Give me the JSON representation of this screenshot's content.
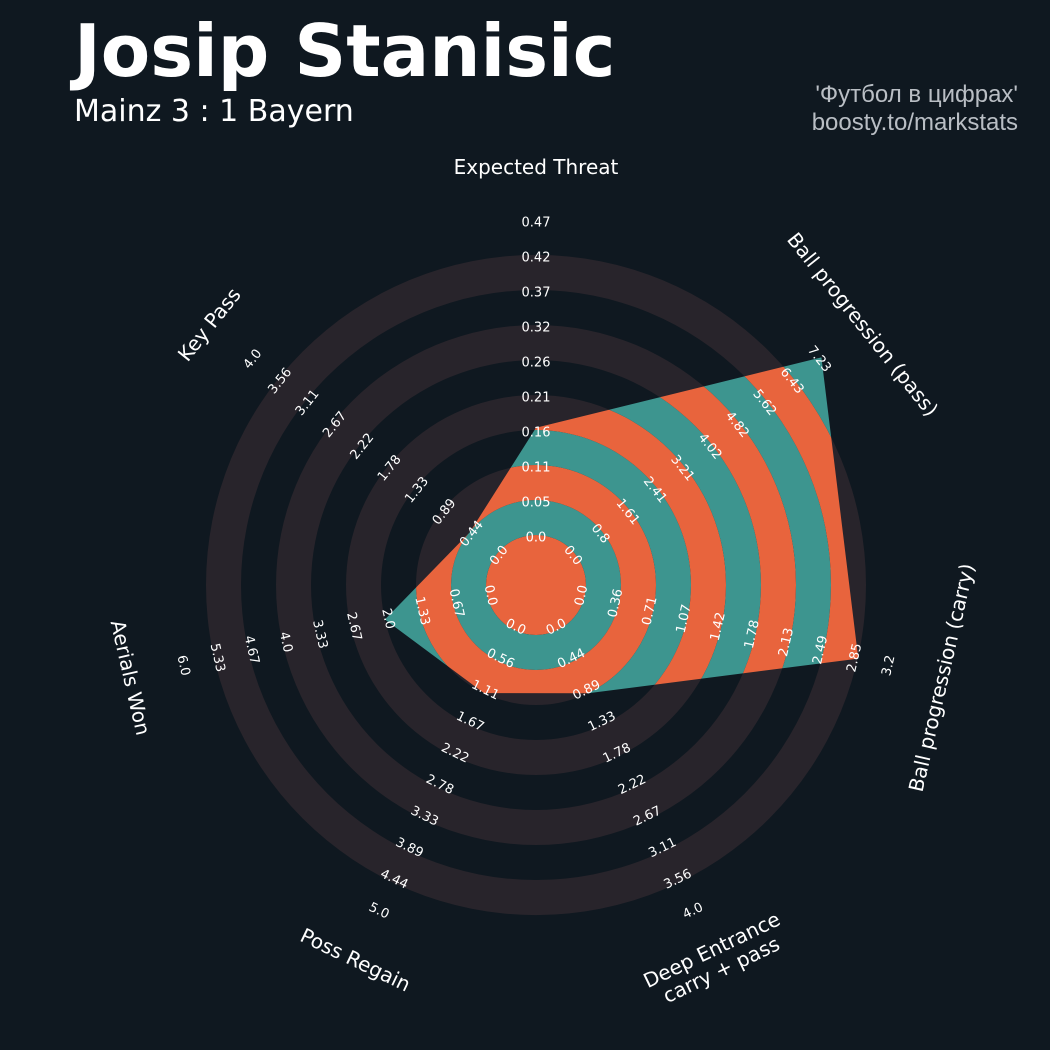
{
  "header": {
    "title": "Josip Stanisic",
    "subtitle": "Mainz 3 : 1 Bayern",
    "credit_line1": "'Футбол в цифрах'",
    "credit_line2": "boosty.to/markstats"
  },
  "chart_data": {
    "type": "radar",
    "grid": true,
    "colors": {
      "background": "#0f1820",
      "ring_band": "#28242b",
      "fill_a": "#e8643d",
      "fill_b": "#3d958f",
      "text": "#ffffff"
    },
    "axes": [
      {
        "label": "Expected Threat",
        "value": 0.16,
        "min": 0.0,
        "max": 0.47,
        "ticks": [
          "0.0",
          "0.05",
          "0.11",
          "0.16",
          "0.21",
          "0.26",
          "0.32",
          "0.37",
          "0.42",
          "0.47"
        ]
      },
      {
        "label": "Ball progression (pass)",
        "value": 7.23,
        "min": 0.0,
        "max": 7.23,
        "ticks": [
          "0.0",
          "0.8",
          "1.61",
          "2.41",
          "3.21",
          "4.02",
          "4.82",
          "5.62",
          "6.43",
          "7.23"
        ]
      },
      {
        "label": "Ball progression (carry)",
        "value": 2.85,
        "min": 0.0,
        "max": 3.2,
        "ticks": [
          "0.0",
          "0.36",
          "0.71",
          "1.07",
          "1.42",
          "1.78",
          "2.13",
          "2.49",
          "2.85",
          "3.2"
        ]
      },
      {
        "label": "Deep Entrance\ncarry + pass",
        "value": 0.89,
        "min": 0.0,
        "max": 4.0,
        "ticks": [
          "0.0",
          "0.44",
          "0.89",
          "1.33",
          "1.78",
          "2.22",
          "2.67",
          "3.11",
          "3.56",
          "4.0"
        ]
      },
      {
        "label": "Poss Regain",
        "value": 1.11,
        "min": 0.0,
        "max": 5.0,
        "ticks": [
          "0.0",
          "0.56",
          "1.11",
          "1.67",
          "2.22",
          "2.78",
          "3.33",
          "3.89",
          "4.44",
          "5.0"
        ]
      },
      {
        "label": "Aerials Won",
        "value": 2.0,
        "min": 0.0,
        "max": 6.0,
        "ticks": [
          "0.0",
          "0.67",
          "1.33",
          "2.0",
          "2.67",
          "3.33",
          "4.0",
          "4.67",
          "5.33",
          "6.0"
        ]
      },
      {
        "label": "Key Pass",
        "value": 0.44,
        "min": 0.0,
        "max": 4.0,
        "ticks": [
          "0.0",
          "0.44",
          "0.89",
          "1.33",
          "1.78",
          "2.22",
          "2.67",
          "3.11",
          "3.56",
          "4.0"
        ]
      }
    ]
  }
}
